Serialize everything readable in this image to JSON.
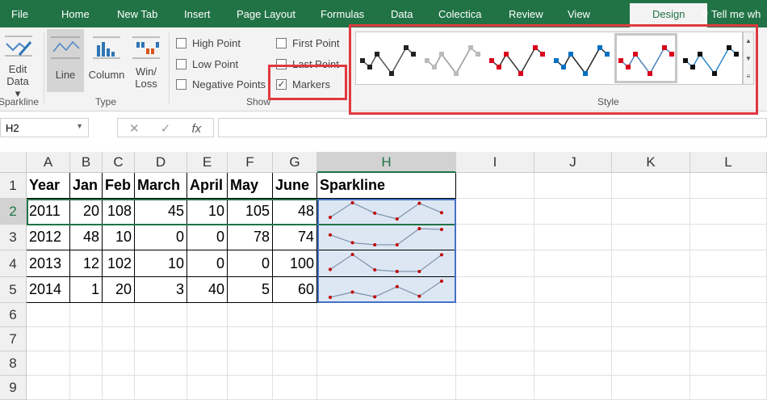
{
  "tabs": [
    "File",
    "Home",
    "New Tab",
    "Insert",
    "Page Layout",
    "Formulas",
    "Data",
    "Colectica",
    "Review",
    "View",
    "Design"
  ],
  "tell_me": "Tell me wh",
  "ribbon": {
    "edit_data": "Edit",
    "edit_data2": "Data ▾",
    "sparkline_group": "Sparkline",
    "type_line": "Line",
    "type_column": "Column",
    "type_winloss1": "Win/",
    "type_winloss2": "Loss",
    "type_group": "Type",
    "show": [
      {
        "label": "High Point",
        "checked": false
      },
      {
        "label": "Low Point",
        "checked": false
      },
      {
        "label": "Negative Points",
        "checked": false
      },
      {
        "label": "First Point",
        "checked": false
      },
      {
        "label": "Last Point",
        "checked": false
      },
      {
        "label": "Markers",
        "checked": true
      }
    ],
    "show_group": "Show",
    "style_group": "Style",
    "styles": [
      {
        "line": "#555555",
        "marker": "#222222"
      },
      {
        "line": "#999999",
        "marker": "#bbbbbb"
      },
      {
        "line": "#333333",
        "marker": "#d9001b"
      },
      {
        "line": "#222222",
        "marker": "#0070c0"
      },
      {
        "line": "#4f81bd",
        "marker": "#d9001b",
        "selected": true
      },
      {
        "line": "#2e86c8",
        "marker": "#111111"
      }
    ]
  },
  "name_box": "H2",
  "formula_icons": [
    "✕",
    "✓",
    "fx"
  ],
  "columns": [
    "A",
    "B",
    "C",
    "D",
    "E",
    "F",
    "G",
    "H",
    "I",
    "J",
    "K",
    "L"
  ],
  "rows": [
    "1",
    "2",
    "3",
    "4",
    "5",
    "6",
    "7",
    "8",
    "9"
  ],
  "header": [
    "Year",
    "Jan",
    "Feb",
    "March",
    "April",
    "May",
    "June",
    "Sparkline"
  ],
  "data": [
    [
      2011,
      20,
      108,
      45,
      10,
      105,
      48
    ],
    [
      2012,
      48,
      10,
      0,
      0,
      78,
      74
    ],
    [
      2013,
      12,
      102,
      10,
      0,
      0,
      100
    ],
    [
      2014,
      1,
      20,
      3,
      40,
      5,
      60
    ]
  ],
  "colors": {
    "accent": "#217346",
    "sparkline": "#8497b0",
    "marker": "#c00000",
    "highlight": "#e0393e"
  }
}
